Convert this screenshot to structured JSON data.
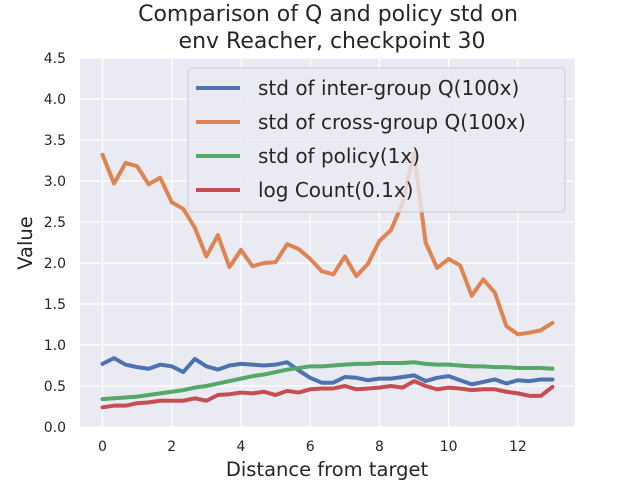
{
  "chart_data": {
    "type": "line",
    "title": [
      "Comparison of Q and policy std on",
      "env Reacher, checkpoint 30"
    ],
    "xlabel": "Distance from target",
    "ylabel": "Value",
    "xlim": [
      -0.65,
      13.65
    ],
    "ylim": [
      0.0,
      4.5
    ],
    "xticks": [
      0,
      2,
      4,
      6,
      8,
      10,
      12
    ],
    "yticks": [
      0.0,
      0.5,
      1.0,
      1.5,
      2.0,
      2.5,
      3.0,
      3.5,
      4.0,
      4.5
    ],
    "grid": true,
    "legend_position": "upper-right",
    "x": [
      0,
      0.333,
      0.667,
      1.0,
      1.333,
      1.667,
      2.0,
      2.333,
      2.667,
      3.0,
      3.333,
      3.667,
      4.0,
      4.333,
      4.667,
      5.0,
      5.333,
      5.667,
      6.0,
      6.333,
      6.667,
      7.0,
      7.333,
      7.667,
      8.0,
      8.333,
      8.667,
      9.0,
      9.333,
      9.667,
      10.0,
      10.333,
      10.667,
      11.0,
      11.333,
      11.667,
      12.0,
      12.333,
      12.667,
      13.0
    ],
    "series": [
      {
        "name": "std of inter-group Q(100x)",
        "color": "#4c72b0",
        "values": [
          0.77,
          0.84,
          0.76,
          0.73,
          0.71,
          0.76,
          0.74,
          0.67,
          0.83,
          0.74,
          0.7,
          0.75,
          0.77,
          0.76,
          0.75,
          0.76,
          0.79,
          0.69,
          0.6,
          0.54,
          0.54,
          0.61,
          0.6,
          0.57,
          0.59,
          0.59,
          0.61,
          0.63,
          0.56,
          0.6,
          0.62,
          0.57,
          0.52,
          0.55,
          0.58,
          0.53,
          0.57,
          0.56,
          0.58,
          0.58
        ]
      },
      {
        "name": "std of cross-group Q(100x)",
        "color": "#dd8452",
        "values": [
          3.32,
          2.97,
          3.22,
          3.18,
          2.96,
          3.04,
          2.74,
          2.66,
          2.43,
          2.08,
          2.34,
          1.95,
          2.16,
          1.96,
          2.0,
          2.01,
          2.23,
          2.17,
          2.05,
          1.9,
          1.86,
          2.08,
          1.84,
          1.99,
          2.27,
          2.4,
          2.73,
          3.34,
          2.25,
          1.94,
          2.05,
          1.97,
          1.6,
          1.8,
          1.64,
          1.23,
          1.13,
          1.15,
          1.18,
          1.27
        ]
      },
      {
        "name": "std of policy(1x)",
        "color": "#55a868",
        "values": [
          0.34,
          0.35,
          0.36,
          0.37,
          0.39,
          0.41,
          0.43,
          0.45,
          0.48,
          0.5,
          0.53,
          0.56,
          0.59,
          0.62,
          0.64,
          0.67,
          0.7,
          0.72,
          0.74,
          0.74,
          0.75,
          0.76,
          0.77,
          0.77,
          0.78,
          0.78,
          0.78,
          0.79,
          0.77,
          0.76,
          0.76,
          0.75,
          0.74,
          0.74,
          0.73,
          0.73,
          0.72,
          0.72,
          0.72,
          0.71
        ]
      },
      {
        "name": "log Count(0.1x)",
        "color": "#c44e52",
        "values": [
          0.24,
          0.26,
          0.26,
          0.29,
          0.3,
          0.32,
          0.32,
          0.32,
          0.35,
          0.32,
          0.39,
          0.4,
          0.42,
          0.41,
          0.43,
          0.39,
          0.44,
          0.42,
          0.46,
          0.47,
          0.47,
          0.5,
          0.46,
          0.47,
          0.48,
          0.5,
          0.48,
          0.56,
          0.5,
          0.46,
          0.48,
          0.47,
          0.45,
          0.46,
          0.46,
          0.43,
          0.41,
          0.38,
          0.38,
          0.49
        ]
      }
    ]
  }
}
